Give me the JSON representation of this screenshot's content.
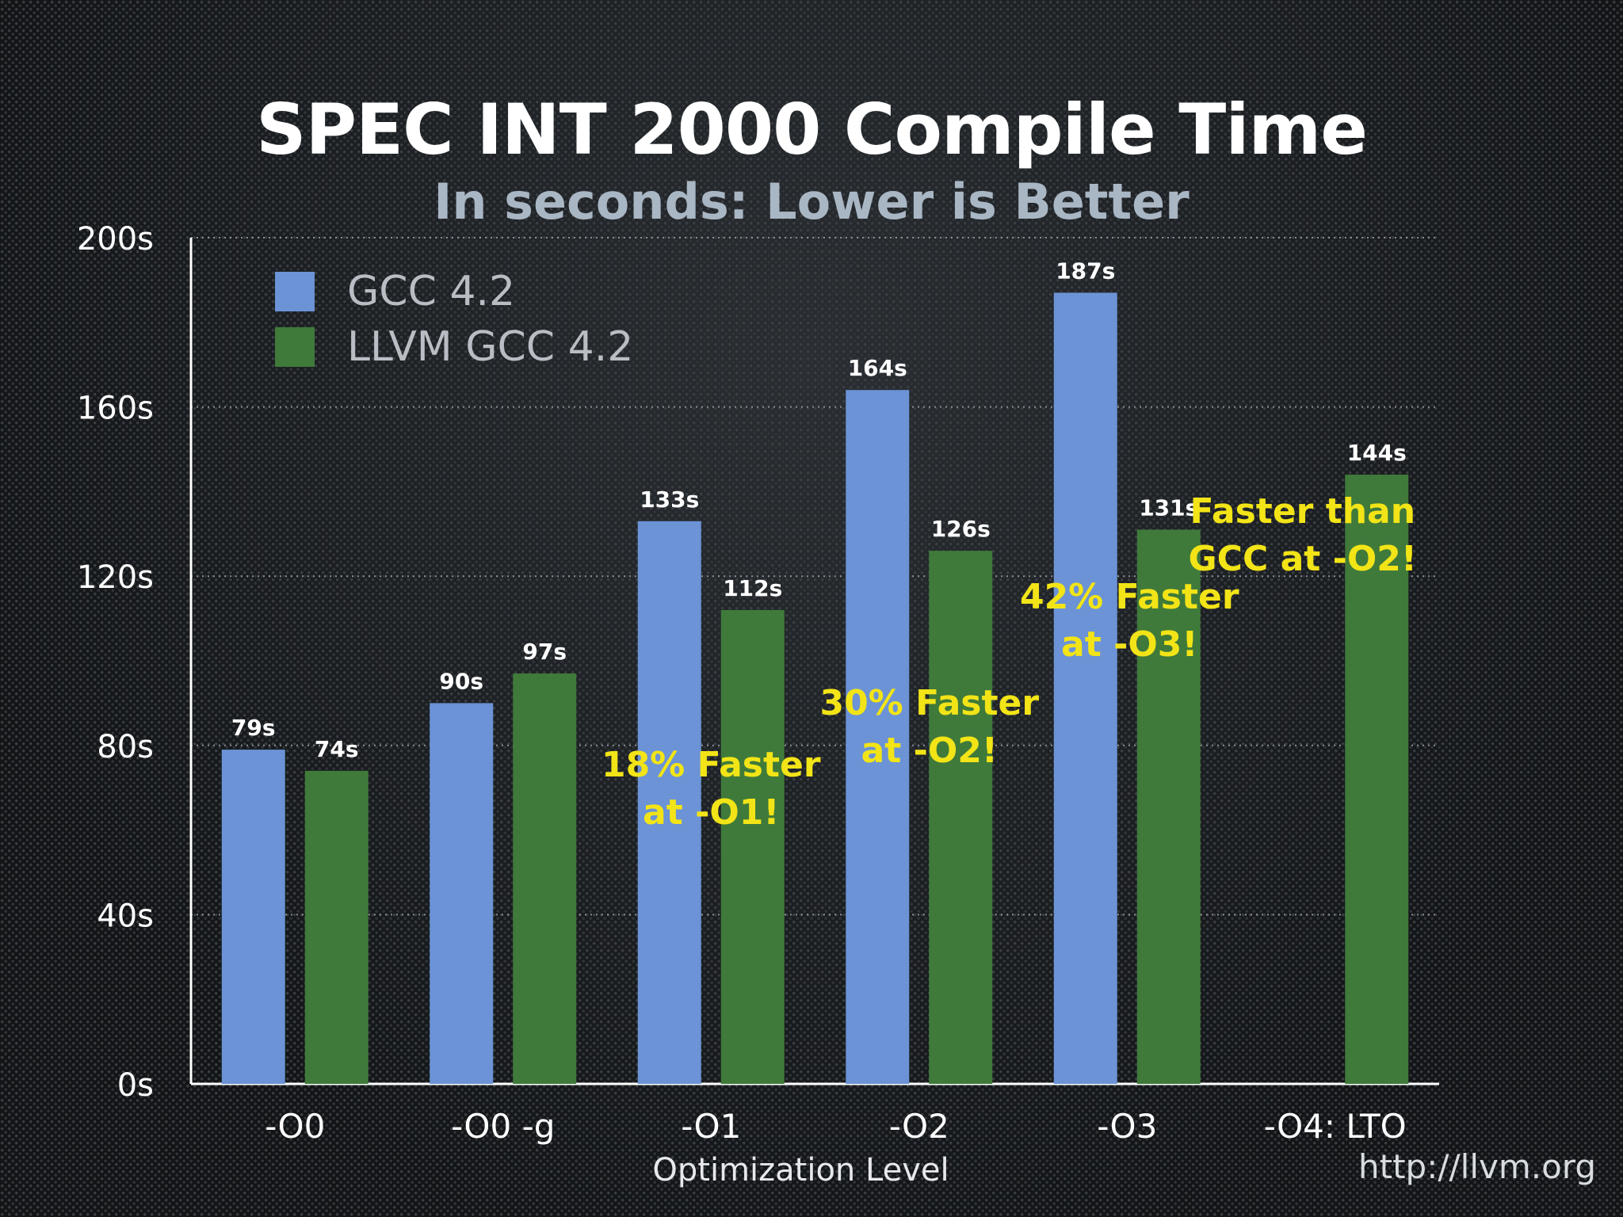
{
  "slide": {
    "title": "SPEC INT 2000 Compile Time",
    "subtitle": "In seconds: Lower is Better",
    "footer": "http://llvm.org"
  },
  "colors": {
    "gcc": "#6b93d6",
    "llvm": "#3f7a3a",
    "annotation": "#f2e417",
    "grid": "#8a8f96",
    "text": "#ffffff"
  },
  "chart_data": {
    "type": "bar",
    "title": "SPEC INT 2000 Compile Time",
    "subtitle": "In seconds: Lower is Better",
    "xlabel": "Optimization Level",
    "ylabel": "",
    "categories": [
      "-O0",
      "-O0 -g",
      "-O1",
      "-O2",
      "-O3",
      "-O4: LTO"
    ],
    "series": [
      {
        "name": "GCC 4.2",
        "values": [
          79,
          90,
          133,
          164,
          187,
          null
        ],
        "labels": [
          "79s",
          "90s",
          "133s",
          "164s",
          "187s",
          ""
        ]
      },
      {
        "name": "LLVM GCC 4.2",
        "values": [
          74,
          97,
          112,
          126,
          131,
          144
        ],
        "labels": [
          "74s",
          "97s",
          "112s",
          "126s",
          "131s",
          "144s"
        ]
      }
    ],
    "ylim": [
      0,
      200
    ],
    "yticks": [
      0,
      40,
      80,
      120,
      160,
      200
    ],
    "ytick_labels": [
      "0s",
      "40s",
      "80s",
      "120s",
      "160s",
      "200s"
    ],
    "grid": true,
    "legend": "top-left",
    "annotations": [
      {
        "category": "-O1",
        "lines": [
          "18% Faster",
          "at -O1!"
        ]
      },
      {
        "category": "-O2",
        "lines": [
          "30% Faster",
          "at -O2!"
        ]
      },
      {
        "category": "-O3",
        "lines": [
          "42% Faster",
          "at -O3!"
        ]
      },
      {
        "category": "-O4: LTO",
        "lines": [
          "Faster than",
          "GCC at -O2!"
        ]
      }
    ]
  }
}
